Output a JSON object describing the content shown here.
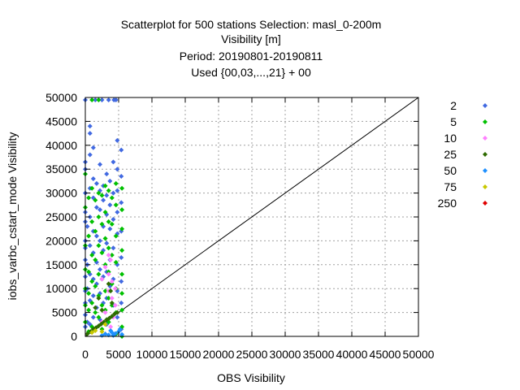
{
  "chart_data": {
    "type": "scatter",
    "title_lines": [
      "Scatterplot for  500 stations Selection: masl_0-200m",
      "Visibility [m]",
      "Period: 20190801-20190811",
      "Used {00,03,...,21} + 00"
    ],
    "xlabel": "OBS Visibility",
    "ylabel": "iobs_varbc_cstart_mode Visibility",
    "xlim": [
      0,
      50000
    ],
    "ylim": [
      0,
      50000
    ],
    "x_ticks": [
      "0",
      "5000",
      "10000",
      "15000",
      "20000",
      "25000",
      "30000",
      "35000",
      "40000",
      "45000",
      "50000"
    ],
    "y_ticks": [
      "0",
      "5000",
      "10000",
      "15000",
      "20000",
      "25000",
      "30000",
      "35000",
      "40000",
      "45000",
      "50000"
    ],
    "grid": true,
    "legend_position": "right",
    "diagonal": true,
    "series": [
      {
        "name": "2",
        "color": "#4169e1",
        "points": [
          [
            0,
            49500
          ],
          [
            1500,
            49500
          ],
          [
            2500,
            49500
          ],
          [
            3500,
            49500
          ],
          [
            4300,
            49500
          ],
          [
            4600,
            49500
          ],
          [
            0,
            36500
          ],
          [
            0,
            35000
          ],
          [
            0,
            30000
          ],
          [
            0,
            26000
          ],
          [
            0,
            24000
          ],
          [
            0,
            20000
          ],
          [
            0,
            18500
          ],
          [
            0,
            16000
          ],
          [
            0,
            12500
          ],
          [
            0,
            9500
          ],
          [
            0,
            7000
          ],
          [
            0,
            4500
          ],
          [
            0,
            2000
          ],
          [
            300,
            23000
          ],
          [
            300,
            15000
          ],
          [
            300,
            10000
          ],
          [
            300,
            3000
          ],
          [
            700,
            44000
          ],
          [
            700,
            42500
          ],
          [
            700,
            38000
          ],
          [
            700,
            31000
          ],
          [
            700,
            25000
          ],
          [
            700,
            19000
          ],
          [
            700,
            13000
          ],
          [
            700,
            7500
          ],
          [
            700,
            2500
          ],
          [
            1200,
            39500
          ],
          [
            1200,
            33000
          ],
          [
            1200,
            29000
          ],
          [
            1200,
            22000
          ],
          [
            1200,
            17500
          ],
          [
            1200,
            12000
          ],
          [
            1200,
            8500
          ],
          [
            1200,
            4000
          ],
          [
            1700,
            32000
          ],
          [
            1700,
            27000
          ],
          [
            1700,
            21000
          ],
          [
            1700,
            15500
          ],
          [
            1700,
            11000
          ],
          [
            1700,
            6000
          ],
          [
            2200,
            36000
          ],
          [
            2200,
            30500
          ],
          [
            2200,
            26500
          ],
          [
            2200,
            20000
          ],
          [
            2200,
            14000
          ],
          [
            2200,
            9000
          ],
          [
            2200,
            3500
          ],
          [
            2700,
            31500
          ],
          [
            2700,
            28500
          ],
          [
            2700,
            23000
          ],
          [
            2700,
            18000
          ],
          [
            2700,
            12500
          ],
          [
            2700,
            7000
          ],
          [
            3200,
            34000
          ],
          [
            3200,
            29500
          ],
          [
            3200,
            25500
          ],
          [
            3200,
            19500
          ],
          [
            3200,
            13500
          ],
          [
            3200,
            8000
          ],
          [
            3200,
            2500
          ],
          [
            3700,
            32500
          ],
          [
            3700,
            27500
          ],
          [
            3700,
            22500
          ],
          [
            3700,
            16000
          ],
          [
            3700,
            10500
          ],
          [
            4200,
            36500
          ],
          [
            4200,
            30000
          ],
          [
            4200,
            24500
          ],
          [
            4200,
            18500
          ],
          [
            4200,
            12000
          ],
          [
            4200,
            6500
          ],
          [
            4800,
            41000
          ],
          [
            4800,
            35000
          ],
          [
            4800,
            30500
          ],
          [
            4800,
            26000
          ],
          [
            4800,
            21500
          ],
          [
            4800,
            15000
          ],
          [
            4800,
            9500
          ],
          [
            4800,
            4000
          ],
          [
            5400,
            39000
          ],
          [
            5400,
            33500
          ],
          [
            5400,
            28000
          ],
          [
            5400,
            22000
          ],
          [
            5400,
            16500
          ],
          [
            5400,
            11500
          ],
          [
            5400,
            7000
          ],
          [
            5400,
            1500
          ]
        ]
      },
      {
        "name": "5",
        "color": "#00c000",
        "points": [
          [
            0,
            34000
          ],
          [
            0,
            27000
          ],
          [
            0,
            19000
          ],
          [
            0,
            14000
          ],
          [
            0,
            10000
          ],
          [
            0,
            6500
          ],
          [
            0,
            3000
          ],
          [
            500,
            29000
          ],
          [
            500,
            21000
          ],
          [
            500,
            13500
          ],
          [
            500,
            9000
          ],
          [
            500,
            5500
          ],
          [
            500,
            1000
          ],
          [
            1000,
            49500
          ],
          [
            1000,
            31000
          ],
          [
            1000,
            24000
          ],
          [
            1000,
            17000
          ],
          [
            1000,
            11500
          ],
          [
            1000,
            7000
          ],
          [
            1000,
            2000
          ],
          [
            1500,
            28500
          ],
          [
            1500,
            22000
          ],
          [
            1500,
            16000
          ],
          [
            1500,
            10500
          ],
          [
            1500,
            5000
          ],
          [
            2000,
            49500
          ],
          [
            2000,
            30000
          ],
          [
            2000,
            25000
          ],
          [
            2000,
            19000
          ],
          [
            2000,
            13000
          ],
          [
            2000,
            8500
          ],
          [
            2000,
            4000
          ],
          [
            2500,
            29500
          ],
          [
            2500,
            23500
          ],
          [
            2500,
            17500
          ],
          [
            2500,
            12000
          ],
          [
            2500,
            6500
          ],
          [
            2500,
            1500
          ],
          [
            3000,
            31500
          ],
          [
            3000,
            26000
          ],
          [
            3000,
            20500
          ],
          [
            3000,
            15000
          ],
          [
            3000,
            9500
          ],
          [
            3000,
            5500
          ],
          [
            3500,
            30500
          ],
          [
            3500,
            24000
          ],
          [
            3500,
            18500
          ],
          [
            3500,
            13500
          ],
          [
            3500,
            8000
          ],
          [
            3500,
            3000
          ],
          [
            4000,
            29000
          ],
          [
            4000,
            23500
          ],
          [
            4000,
            17000
          ],
          [
            4000,
            11000
          ],
          [
            4000,
            6500
          ],
          [
            4600,
            32000
          ],
          [
            4600,
            27500
          ],
          [
            4600,
            21000
          ],
          [
            4600,
            15500
          ],
          [
            4600,
            10000
          ],
          [
            4600,
            5000
          ],
          [
            4600,
            500
          ],
          [
            5500,
            31000
          ],
          [
            5500,
            26500
          ],
          [
            5500,
            22500
          ],
          [
            5500,
            18000
          ],
          [
            5500,
            13000
          ],
          [
            5500,
            9000
          ],
          [
            5500,
            5500
          ],
          [
            5500,
            2000
          ],
          [
            5500,
            0
          ]
        ]
      },
      {
        "name": "10",
        "color": "#ff80ff",
        "points": [
          [
            2500,
            12000
          ],
          [
            3000,
            14500
          ],
          [
            3500,
            17000
          ],
          [
            3500,
            13000
          ],
          [
            3500,
            9500
          ],
          [
            3800,
            16000
          ],
          [
            4000,
            11500
          ],
          [
            4000,
            8000
          ],
          [
            4500,
            10000
          ],
          [
            4500,
            6500
          ],
          [
            3000,
            5000
          ],
          [
            2500,
            3000
          ],
          [
            4200,
            4000
          ],
          [
            3800,
            2000
          ]
        ]
      },
      {
        "name": "25",
        "color": "#2e6b00",
        "points": [
          [
            300,
            500
          ],
          [
            800,
            1000
          ],
          [
            1200,
            1500
          ],
          [
            1600,
            1800
          ],
          [
            2000,
            2200
          ],
          [
            2400,
            2600
          ],
          [
            2800,
            3000
          ],
          [
            3200,
            3500
          ],
          [
            3600,
            3800
          ],
          [
            4000,
            4200
          ],
          [
            4400,
            4700
          ],
          [
            4800,
            5000
          ],
          [
            3500,
            11000
          ],
          [
            3800,
            9500
          ],
          [
            4000,
            7000
          ],
          [
            2500,
            5500
          ],
          [
            2000,
            8000
          ],
          [
            1500,
            6000
          ]
        ]
      },
      {
        "name": "50",
        "color": "#1e90ff",
        "points": [
          [
            2500,
            200
          ],
          [
            3000,
            500
          ],
          [
            3500,
            300
          ],
          [
            4000,
            800
          ],
          [
            4500,
            600
          ],
          [
            5000,
            1000
          ],
          [
            5500,
            400
          ],
          [
            4200,
            200
          ],
          [
            3800,
            1200
          ],
          [
            5200,
            1500
          ]
        ]
      },
      {
        "name": "75",
        "color": "#c8c800",
        "points": [
          [
            1000,
            800
          ],
          [
            1500,
            1200
          ],
          [
            2500,
            1000
          ],
          [
            3000,
            2500
          ]
        ]
      },
      {
        "name": "250",
        "color": "#e00000",
        "points": []
      }
    ]
  }
}
